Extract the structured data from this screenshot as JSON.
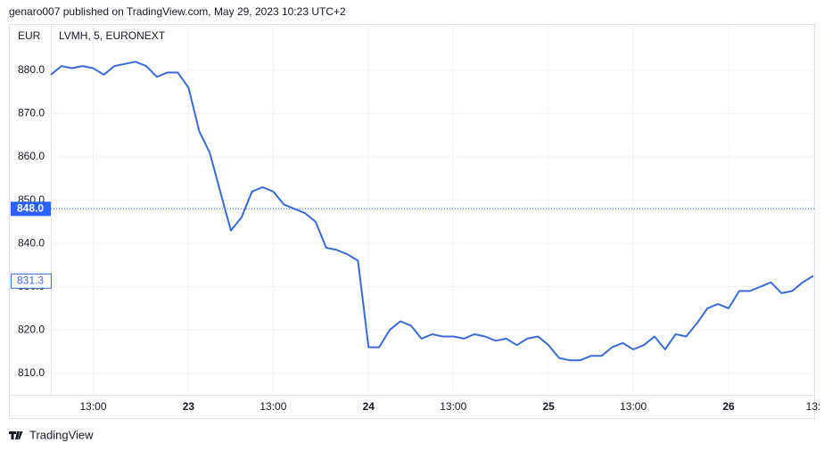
{
  "header": "genaro007 published on TradingView.com, May 29, 2023 10:23 UTC+2",
  "footer": "TradingView",
  "chart_data": {
    "type": "line",
    "title": "LVMH, 5, EURONEXT",
    "y_label": "EUR",
    "categories": [
      null,
      null,
      null,
      null,
      "13:00",
      null,
      null,
      null,
      null,
      null,
      null,
      null,
      null,
      "23",
      null,
      null,
      null,
      null,
      null,
      null,
      null,
      "13:00",
      null,
      null,
      null,
      null,
      null,
      null,
      null,
      null,
      "24",
      null,
      null,
      null,
      null,
      null,
      null,
      null,
      "13:00",
      null,
      null,
      null,
      null,
      null,
      null,
      null,
      null,
      "25",
      null,
      null,
      null,
      null,
      null,
      null,
      null,
      "13:00",
      null,
      null,
      null,
      null,
      null,
      null,
      null,
      null,
      "26",
      null,
      null,
      null,
      null,
      null,
      null,
      null,
      "13:"
    ],
    "series": [
      {
        "name": "LVMH",
        "color": "#3a6ad4",
        "values": [
          879,
          881,
          880.5,
          881,
          880.5,
          879,
          881,
          881.5,
          882,
          881,
          878.5,
          879.5,
          879.5,
          876,
          866,
          861,
          852,
          843,
          846,
          852,
          853,
          852,
          849,
          848,
          847,
          845,
          839,
          838.5,
          837.5,
          836,
          816,
          816,
          820,
          822,
          821,
          818,
          819,
          818.5,
          818.5,
          818,
          819,
          818.5,
          817.5,
          818,
          816.5,
          818,
          818.5,
          816.5,
          813.5,
          813,
          813,
          814,
          814,
          816,
          817,
          815.5,
          816.5,
          818.5,
          815.5,
          819,
          818.5,
          821.5,
          825,
          826,
          825,
          829,
          829,
          830,
          831,
          828.5,
          829,
          831,
          832.5
        ]
      }
    ],
    "ylim": [
      805,
      890.5
    ],
    "yticks": [
      {
        "value": 810,
        "label": "810.0"
      },
      {
        "value": 820,
        "label": "820.0"
      },
      {
        "value": 830,
        "label": "830.0"
      },
      {
        "value": 840,
        "label": "840.0"
      },
      {
        "value": 850,
        "label": "850.0"
      },
      {
        "value": 860,
        "label": "860.0"
      },
      {
        "value": 870,
        "label": "870.0"
      },
      {
        "value": 880,
        "label": "880.0"
      }
    ],
    "grid": true,
    "price_line": {
      "value": 848,
      "label": "848.0",
      "color": "#2962ff"
    },
    "last_price": {
      "value": 831.3,
      "label": "831.3"
    }
  }
}
